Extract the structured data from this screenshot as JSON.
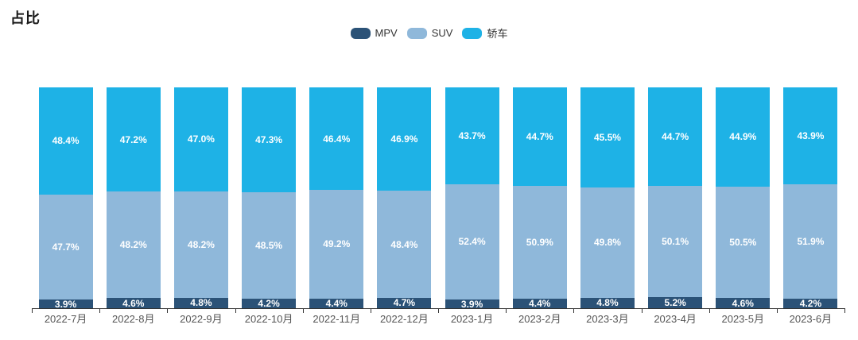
{
  "title": "占比",
  "legend": [
    {
      "name": "MPV",
      "color": "#2b5277"
    },
    {
      "name": "SUV",
      "color": "#8fb8da"
    },
    {
      "name": "轿车",
      "color": "#1eb2e6"
    }
  ],
  "chart_data": {
    "type": "bar",
    "stacked": true,
    "title": "占比",
    "value_suffix": "%",
    "ylim": [
      0,
      100
    ],
    "grid": false,
    "legend_position": "top-center",
    "categories": [
      "2022-7月",
      "2022-8月",
      "2022-9月",
      "2022-10月",
      "2022-11月",
      "2022-12月",
      "2023-1月",
      "2023-2月",
      "2023-3月",
      "2023-4月",
      "2023-5月",
      "2023-6月"
    ],
    "series": [
      {
        "name": "MPV",
        "color": "#2b5277",
        "values": [
          3.9,
          4.6,
          4.8,
          4.2,
          4.4,
          4.7,
          3.9,
          4.4,
          4.8,
          5.2,
          4.6,
          4.2
        ]
      },
      {
        "name": "SUV",
        "color": "#8fb8da",
        "values": [
          47.7,
          48.2,
          48.2,
          48.5,
          49.2,
          48.4,
          52.4,
          50.9,
          49.8,
          50.1,
          50.5,
          51.9
        ]
      },
      {
        "name": "轿车",
        "color": "#1eb2e6",
        "values": [
          48.4,
          47.2,
          47.0,
          47.3,
          46.4,
          46.9,
          43.7,
          44.7,
          45.5,
          44.7,
          44.9,
          43.9
        ]
      }
    ]
  }
}
